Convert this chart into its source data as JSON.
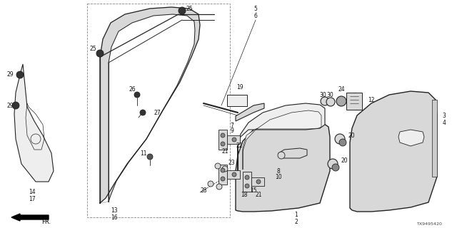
{
  "bg_color": "#ffffff",
  "diagram_code": "TX9495420",
  "line_color": "#222222",
  "gray_fill": "#d8d8d8",
  "light_fill": "#eeeeee"
}
